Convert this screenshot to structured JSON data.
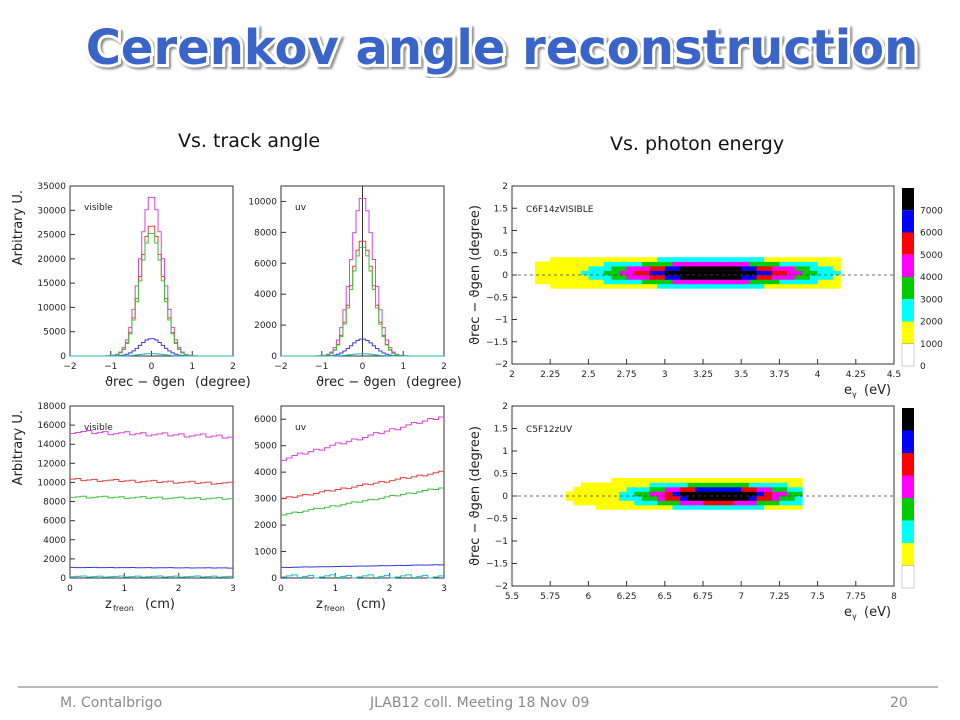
{
  "slide": {
    "title": "Cerenkov angle reconstruction",
    "subtitle_left": "Vs. track angle",
    "subtitle_right": "Vs. photon energy",
    "title_color": "#3a64c8"
  },
  "footer": {
    "author": "M. Contalbrigo",
    "meeting": "JLAB12 coll. Meeting 18 Nov 09",
    "page": "20"
  },
  "chart_data": [
    {
      "id": "hist-visible-angle",
      "type": "line",
      "tag": "visible",
      "ylabel": "Arbitrary U.",
      "xlabel_main": "ϑ",
      "xlabel_tail": "(degree)",
      "xlim": [
        -2,
        2
      ],
      "ylim": [
        0,
        35000
      ],
      "xticks": [
        -2,
        -1,
        0,
        1,
        2
      ],
      "yticks": [
        0,
        5000,
        10000,
        15000,
        20000,
        25000,
        30000,
        35000
      ],
      "peak_x": 0,
      "peak_sigma": 0.28,
      "series": [
        {
          "color": "#e040e0",
          "peak": 33000
        },
        {
          "color": "#e84040",
          "peak": 27000
        },
        {
          "color": "#40c040",
          "peak": 25500
        },
        {
          "color": "#3a3ad8",
          "peak": 3600
        },
        {
          "color": "#20b8b8",
          "peak": 500
        }
      ]
    },
    {
      "id": "hist-uv-angle",
      "type": "line",
      "tag": "uv",
      "ylabel": "",
      "xlabel_main": "ϑ",
      "xlabel_tail": "(degree)",
      "xlim": [
        -2,
        2
      ],
      "ylim": [
        0,
        11000
      ],
      "xticks": [
        -2,
        -1,
        0,
        1,
        2
      ],
      "yticks": [
        0,
        2000,
        4000,
        6000,
        8000,
        10000
      ],
      "peak_x": 0,
      "peak_sigma": 0.28,
      "vline_x": 0,
      "series": [
        {
          "color": "#e040e0",
          "peak": 10300
        },
        {
          "color": "#e84040",
          "peak": 7500
        },
        {
          "color": "#40c040",
          "peak": 7100
        },
        {
          "color": "#3a3ad8",
          "peak": 1100
        },
        {
          "color": "#20b8b8",
          "peak": 150
        }
      ]
    },
    {
      "id": "hist-visible-z",
      "type": "line",
      "tag": "visible",
      "ylabel": "Arbitrary U.",
      "xlabel_main": "z",
      "xlabel_sub": "freon",
      "xlabel_tail": "(cm)",
      "xlim": [
        0,
        3
      ],
      "ylim": [
        0,
        18000
      ],
      "xticks": [
        0,
        1,
        2,
        3
      ],
      "yticks": [
        0,
        2000,
        4000,
        6000,
        8000,
        10000,
        12000,
        14000,
        16000,
        18000
      ],
      "bins": 30,
      "series": [
        {
          "color": "#e040e0",
          "y0": 15300,
          "y1": 14800
        },
        {
          "color": "#e84040",
          "y0": 10300,
          "y1": 9900
        },
        {
          "color": "#40c040",
          "y0": 8500,
          "y1": 8300
        },
        {
          "color": "#3a3ad8",
          "y0": 1100,
          "y1": 1050
        },
        {
          "color": "#20b8b8",
          "y0": 150,
          "y1": 150
        }
      ]
    },
    {
      "id": "hist-uv-z",
      "type": "line",
      "tag": "uv",
      "ylabel": "",
      "xlabel_main": "z",
      "xlabel_sub": "freon",
      "xlabel_tail": "(cm)",
      "xlim": [
        0,
        3
      ],
      "ylim": [
        0,
        6500
      ],
      "xticks": [
        0,
        1,
        2,
        3
      ],
      "yticks": [
        0,
        1000,
        2000,
        3000,
        4000,
        5000,
        6000
      ],
      "bins": 30,
      "series": [
        {
          "color": "#e040e0",
          "y0": 4500,
          "y1": 6100
        },
        {
          "color": "#e84040",
          "y0": 3000,
          "y1": 4000
        },
        {
          "color": "#40c040",
          "y0": 2400,
          "y1": 3400
        },
        {
          "color": "#3a3ad8",
          "y0": 400,
          "y1": 500
        },
        {
          "color": "#20b8b8",
          "y0": 60,
          "y1": 60
        }
      ]
    },
    {
      "id": "heatmap-visible",
      "type": "heatmap",
      "tag": "C6F14zVISIBLE",
      "xlabel_main": "e",
      "xlabel_sub": "γ",
      "xlabel_tail": "(eV)",
      "ylabel_main": "ϑ",
      "ylabel_tail": "(degree)",
      "xlim": [
        2,
        4.5
      ],
      "ylim": [
        -2,
        2
      ],
      "xticks": [
        2,
        2.25,
        2.5,
        2.75,
        3,
        3.25,
        3.5,
        3.75,
        4,
        4.25,
        4.5
      ],
      "yticks": [
        -2,
        -1.5,
        -1,
        -0.5,
        0,
        0.5,
        1,
        1.5,
        2
      ],
      "zticks": [
        0,
        1000,
        2000,
        3000,
        4000,
        5000,
        6000,
        7000
      ],
      "center_x": 3.3,
      "sigma_x": 0.42,
      "center_y": 0.05,
      "sigma_y": 0.16,
      "x_range": [
        2.15,
        4.15
      ],
      "cell_x": 0.05,
      "cell_y": 0.1,
      "max": 7000
    },
    {
      "id": "heatmap-uv",
      "type": "heatmap",
      "tag": "C5F12zUV",
      "xlabel_main": "e",
      "xlabel_sub": "γ",
      "xlabel_tail": "(eV)",
      "ylabel_main": "ϑ",
      "ylabel_tail": "(degree)",
      "xlim": [
        5.5,
        8
      ],
      "ylim": [
        -2,
        2
      ],
      "xticks": [
        5.5,
        5.75,
        6,
        6.25,
        6.5,
        6.75,
        7,
        7.25,
        7.5,
        7.75,
        8
      ],
      "yticks": [
        -2,
        -1.5,
        -1,
        -0.5,
        0,
        0.5,
        1,
        1.5,
        2
      ],
      "zticks": [],
      "center_x": 6.85,
      "sigma_x": 0.32,
      "center_y": 0.02,
      "sigma_y": 0.15,
      "x_range": [
        5.8,
        7.4
      ],
      "cell_x": 0.05,
      "cell_y": 0.1,
      "max": 7000
    }
  ],
  "palette": [
    "#ffffff",
    "#ffff00",
    "#00ffff",
    "#00cc00",
    "#ff00ff",
    "#ff0000",
    "#0000ff",
    "#000000"
  ]
}
